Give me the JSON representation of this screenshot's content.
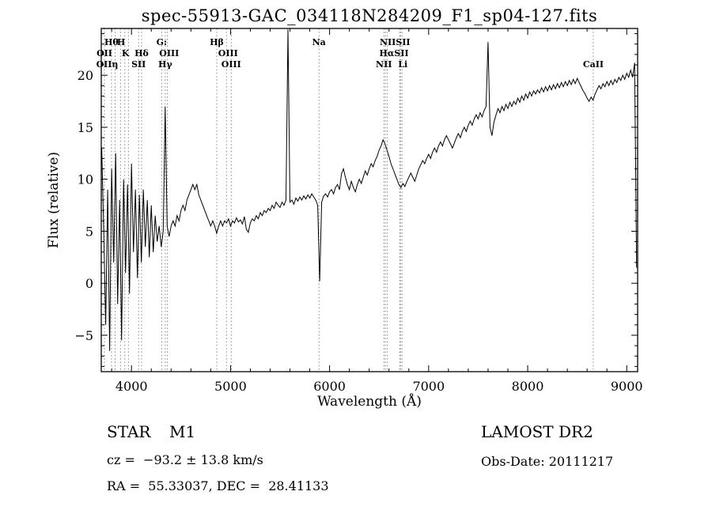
{
  "title": "spec-55913-GAC_034118N284209_F1_sp04-127.fits",
  "footer": {
    "class_label": "STAR",
    "subclass": "M1",
    "survey": "LAMOST DR2",
    "cz_line": "cz =  −93.2 ± 13.8 km/s",
    "obs_date_line": "Obs-Date: 20111217",
    "radec_line": "RA =  55.33037, DEC =  28.41133"
  },
  "colors": {
    "foreground": "#000000",
    "background": "#ffffff",
    "marker_line": "#777777"
  },
  "chart_data": {
    "type": "line",
    "title": "spec-55913-GAC_034118N284209_F1_sp04-127.fits",
    "xlabel": "Wavelength (Å)",
    "ylabel": "Flux (relative)",
    "xlim": [
      3695,
      9110
    ],
    "ylim": [
      -8.5,
      24.5
    ],
    "grid": false,
    "x_major_ticks": [
      4000,
      5000,
      6000,
      7000,
      8000,
      9000
    ],
    "x_major_step": 1000,
    "x_minor_step": 200,
    "y_major_ticks": [
      -5,
      0,
      5,
      10,
      15,
      20
    ],
    "y_major_step": 5,
    "y_minor_step": 1,
    "wavelength_start": 3700,
    "wavelength_step": 20,
    "flux": [
      13,
      5,
      -4,
      9,
      -6.5,
      11,
      2,
      12.5,
      -2,
      8,
      -5.5,
      10,
      1,
      9.5,
      -1,
      11.5,
      3,
      9,
      0.5,
      8.5,
      2,
      9,
      3.5,
      8,
      2.5,
      7.5,
      3,
      6.5,
      4,
      5.5,
      3.5,
      5,
      17,
      5.5,
      4.5,
      5.5,
      6,
      5.5,
      6.5,
      6,
      7,
      7.5,
      7,
      8,
      8.5,
      9,
      9.5,
      9,
      9.5,
      8.5,
      8,
      7.5,
      7,
      6.5,
      6,
      5.5,
      6,
      5.5,
      4.8,
      5.5,
      6,
      5.5,
      6,
      5.8,
      6.2,
      5.5,
      6,
      5.8,
      6.3,
      5.9,
      6.1,
      5.7,
      6.4,
      5.2,
      4.9,
      5.8,
      6.2,
      6,
      6.5,
      6.2,
      6.8,
      6.5,
      7,
      6.8,
      7.2,
      7,
      7.5,
      7.2,
      7.8,
      7.5,
      7.3,
      7.8,
      7.5,
      8,
      24.4,
      7.8,
      8,
      7.6,
      8.2,
      7.9,
      8.3,
      8,
      8.4,
      8.1,
      8.5,
      8.2,
      8.6,
      8.3,
      8,
      7.5,
      0.2,
      7.8,
      8.4,
      8.6,
      8.3,
      8.8,
      9,
      8.6,
      9.2,
      9.5,
      9,
      10.5,
      11,
      10.2,
      9.5,
      9,
      9.8,
      9.2,
      8.8,
      9.5,
      10,
      9.6,
      10.2,
      10.8,
      10.4,
      11,
      11.5,
      11.2,
      11.8,
      12.2,
      12.8,
      13.2,
      13.8,
      13.4,
      12.8,
      12.2,
      11.5,
      11,
      10.5,
      10,
      9.5,
      9.2,
      9.6,
      9.3,
      9.8,
      10.2,
      10.6,
      10.2,
      9.8,
      10.4,
      11,
      11.4,
      11.8,
      11.5,
      12,
      12.4,
      12,
      12.6,
      13,
      12.6,
      13.2,
      13.6,
      13.2,
      13.8,
      14.2,
      13.8,
      13.4,
      13,
      13.5,
      14,
      14.4,
      14,
      14.6,
      15,
      14.6,
      15.2,
      15.6,
      15.2,
      15.8,
      16.2,
      15.8,
      16.4,
      16,
      16.6,
      17,
      23.2,
      15,
      14.2,
      15.5,
      16.2,
      16.8,
      16.4,
      17,
      16.6,
      17.2,
      16.8,
      17.4,
      17,
      17.5,
      17.2,
      17.8,
      17.4,
      18,
      17.6,
      18.2,
      17.8,
      18.4,
      18,
      18.5,
      18.2,
      18.6,
      18.3,
      18.8,
      18.4,
      18.9,
      18.5,
      19,
      18.6,
      19.1,
      18.7,
      19.2,
      18.8,
      19.3,
      18.9,
      19.4,
      19,
      19.5,
      19.1,
      19.6,
      19.2,
      19.7,
      19.3,
      18.9,
      18.5,
      18.2,
      17.8,
      17.5,
      17.9,
      17.6,
      18.2,
      18.6,
      19,
      18.7,
      19.2,
      18.9,
      19.4,
      19,
      19.5,
      19.1,
      19.6,
      19.3,
      19.8,
      19.5,
      20,
      19.6,
      20.2,
      19.8,
      20.5,
      19.8,
      21.2,
      1.5
    ],
    "line_markers": [
      3727,
      3798,
      3835,
      3889,
      3933,
      3969,
      4072,
      4102,
      4305,
      4341,
      4363,
      4861,
      4959,
      5007,
      5893,
      6548,
      6563,
      6583,
      6708,
      6716,
      6731,
      8662
    ],
    "line_labels": [
      {
        "text": "Hθ",
        "wl": 3798,
        "row": 1
      },
      {
        "text": "H",
        "wl": 3895,
        "row": 1
      },
      {
        "text": "G:",
        "wl": 4305,
        "row": 1
      },
      {
        "text": "Hβ",
        "wl": 4861,
        "row": 1
      },
      {
        "text": "Na",
        "wl": 5893,
        "row": 1
      },
      {
        "text": "NIISII",
        "wl": 6660,
        "row": 1
      },
      {
        "text": "OII",
        "wl": 3727,
        "row": 2
      },
      {
        "text": "K",
        "wl": 3940,
        "row": 2
      },
      {
        "text": "Hδ",
        "wl": 4102,
        "row": 2
      },
      {
        "text": "OIII",
        "wl": 4380,
        "row": 2
      },
      {
        "text": "OIII",
        "wl": 4975,
        "row": 2
      },
      {
        "text": "HαSII",
        "wl": 6650,
        "row": 2
      },
      {
        "text": "OIIη",
        "wl": 3755,
        "row": 3
      },
      {
        "text": "SII",
        "wl": 4072,
        "row": 3
      },
      {
        "text": "Hγ",
        "wl": 4341,
        "row": 3
      },
      {
        "text": "OIII",
        "wl": 5007,
        "row": 3
      },
      {
        "text": "NII",
        "wl": 6548,
        "row": 3
      },
      {
        "text": "Li",
        "wl": 6740,
        "row": 3
      },
      {
        "text": "CaII",
        "wl": 8662,
        "row": 3
      }
    ]
  }
}
